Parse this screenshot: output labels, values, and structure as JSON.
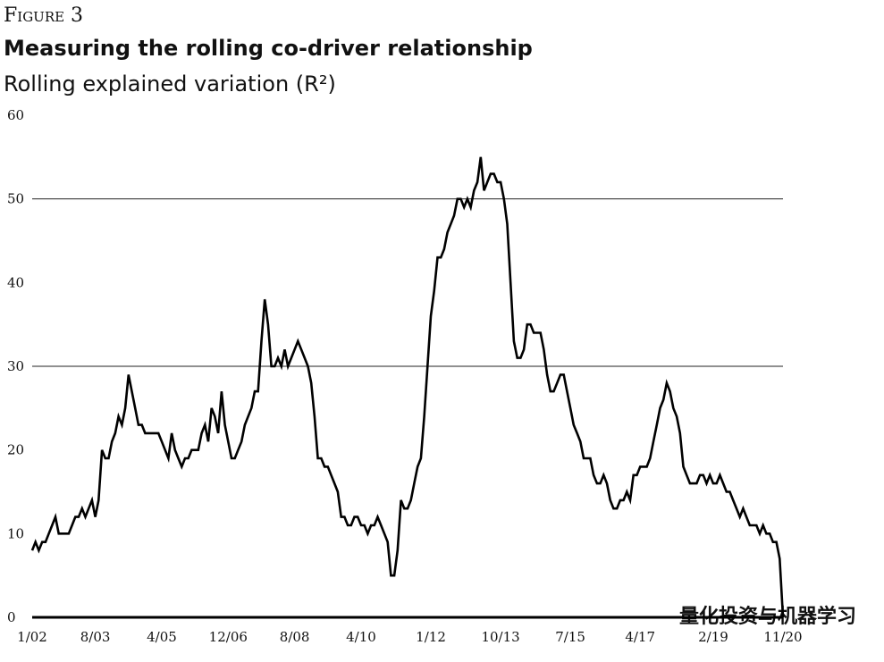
{
  "chart_data": {
    "type": "line",
    "figure_label": "Figure 3",
    "title": "Measuring the rolling co-driver relationship",
    "subtitle": "Rolling explained variation (R²)",
    "color": "#000000",
    "ylim": [
      0,
      60
    ],
    "yticks": [
      0,
      10,
      20,
      30,
      40,
      50,
      60
    ],
    "reference_lines": [
      30,
      50
    ],
    "categories": [
      "1/02",
      null,
      null,
      null,
      null,
      null,
      null,
      null,
      null,
      null,
      null,
      null,
      null,
      null,
      null,
      null,
      null,
      null,
      null,
      "8/03",
      null,
      null,
      null,
      null,
      null,
      null,
      null,
      null,
      null,
      null,
      null,
      null,
      null,
      null,
      null,
      null,
      null,
      null,
      null,
      "4/05",
      null,
      null,
      null,
      null,
      null,
      null,
      null,
      null,
      null,
      null,
      null,
      null,
      null,
      null,
      null,
      null,
      null,
      null,
      null,
      "12/06",
      null,
      null,
      null,
      null,
      null,
      null,
      null,
      null,
      null,
      null,
      null,
      null,
      null,
      null,
      null,
      null,
      null,
      null,
      null,
      "8/08",
      null,
      null,
      null,
      null,
      null,
      null,
      null,
      null,
      null,
      null,
      null,
      null,
      null,
      null,
      null,
      null,
      null,
      null,
      null,
      "4/10",
      null,
      null,
      null,
      null,
      null,
      null,
      null,
      null,
      null,
      null,
      null,
      null,
      null,
      null,
      null,
      null,
      null,
      null,
      null,
      null,
      "1/12",
      null,
      null,
      null,
      null,
      null,
      null,
      null,
      null,
      null,
      null,
      null,
      null,
      null,
      null,
      null,
      null,
      null,
      null,
      null,
      null,
      "10/13",
      null,
      null,
      null,
      null,
      null,
      null,
      null,
      null,
      null,
      null,
      null,
      null,
      null,
      null,
      null,
      null,
      null,
      null,
      null,
      null,
      "7/15",
      null,
      null,
      null,
      null,
      null,
      null,
      null,
      null,
      null,
      null,
      null,
      null,
      null,
      null,
      null,
      null,
      null,
      null,
      null,
      null,
      "4/17",
      null,
      null,
      null,
      null,
      null,
      null,
      null,
      null,
      null,
      null,
      null,
      null,
      null,
      null,
      null,
      null,
      null,
      null,
      null,
      null,
      null,
      "2/19",
      null,
      null,
      null,
      null,
      null,
      null,
      null,
      null,
      null,
      null,
      null,
      null,
      null,
      null,
      null,
      null,
      null,
      null,
      null,
      null,
      "11/20"
    ],
    "values": [
      8,
      9,
      8,
      9,
      9,
      10,
      11,
      12,
      10,
      10,
      10,
      10,
      11,
      12,
      12,
      13,
      12,
      13,
      14,
      12,
      14,
      20,
      19,
      19,
      21,
      22,
      24,
      23,
      25,
      29,
      27,
      25,
      23,
      23,
      22,
      22,
      22,
      22,
      22,
      21,
      20,
      19,
      22,
      20,
      19,
      18,
      19,
      19,
      20,
      20,
      20,
      22,
      23,
      21,
      25,
      24,
      22,
      27,
      23,
      21,
      19,
      19,
      20,
      21,
      23,
      24,
      25,
      27,
      27,
      33,
      38,
      35,
      30,
      30,
      31,
      30,
      32,
      30,
      31,
      32,
      33,
      32,
      31,
      30,
      28,
      24,
      19,
      19,
      18,
      18,
      17,
      16,
      15,
      12,
      12,
      11,
      11,
      12,
      12,
      11,
      11,
      10,
      11,
      11,
      12,
      11,
      10,
      9,
      5,
      5,
      8,
      14,
      13,
      13,
      14,
      16,
      18,
      19,
      24,
      30,
      36,
      39,
      43,
      43,
      44,
      46,
      47,
      48,
      50,
      50,
      49,
      50,
      49,
      51,
      52,
      55,
      51,
      52,
      53,
      53,
      52,
      52,
      50,
      47,
      40,
      33,
      31,
      31,
      32,
      35,
      35,
      34,
      34,
      34,
      32,
      29,
      27,
      27,
      28,
      29,
      29,
      27,
      25,
      23,
      22,
      21,
      19,
      19,
      19,
      17,
      16,
      16,
      17,
      16,
      14,
      13,
      13,
      14,
      14,
      15,
      14,
      17,
      17,
      18,
      18,
      18,
      19,
      21,
      23,
      25,
      26,
      28,
      27,
      25,
      24,
      22,
      18,
      17,
      16,
      16,
      16,
      17,
      17,
      16,
      17,
      16,
      16,
      17,
      16,
      15,
      15,
      14,
      13,
      12,
      13,
      12,
      11,
      11,
      11,
      10,
      11,
      10,
      10,
      9,
      9,
      7,
      0
    ]
  },
  "watermark": "量化投资与机器学习"
}
